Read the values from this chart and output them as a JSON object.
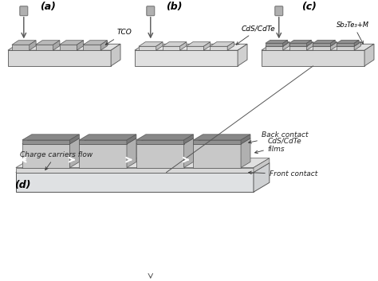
{
  "bg_color": "#ffffff",
  "title": "",
  "label_a": "(a)",
  "label_b": "(b)",
  "label_c": "(c)",
  "label_d": "(d)",
  "tco_label": "TCO",
  "cds_cdte_label": "CdS/CdTe",
  "sb_label": "Sb₂Te₃+M",
  "back_contact_label": "Back contact",
  "cds_cdte_films_label": "CdS/CdTe\nfilms",
  "front_contact_label": "Front contact",
  "charge_label": "Charge carriers flow",
  "substrate_color": "#e8e8e8",
  "substrate_side_color": "#d0d0d0",
  "substrate_bottom_color": "#c8c8c8",
  "tco_strip_color": "#b8b8b8",
  "tco_strip_side_color": "#a0a0a0",
  "cds_strip_color": "#c8c8c8",
  "back_contact_color": "#909090",
  "back_contact_side_color": "#787878"
}
